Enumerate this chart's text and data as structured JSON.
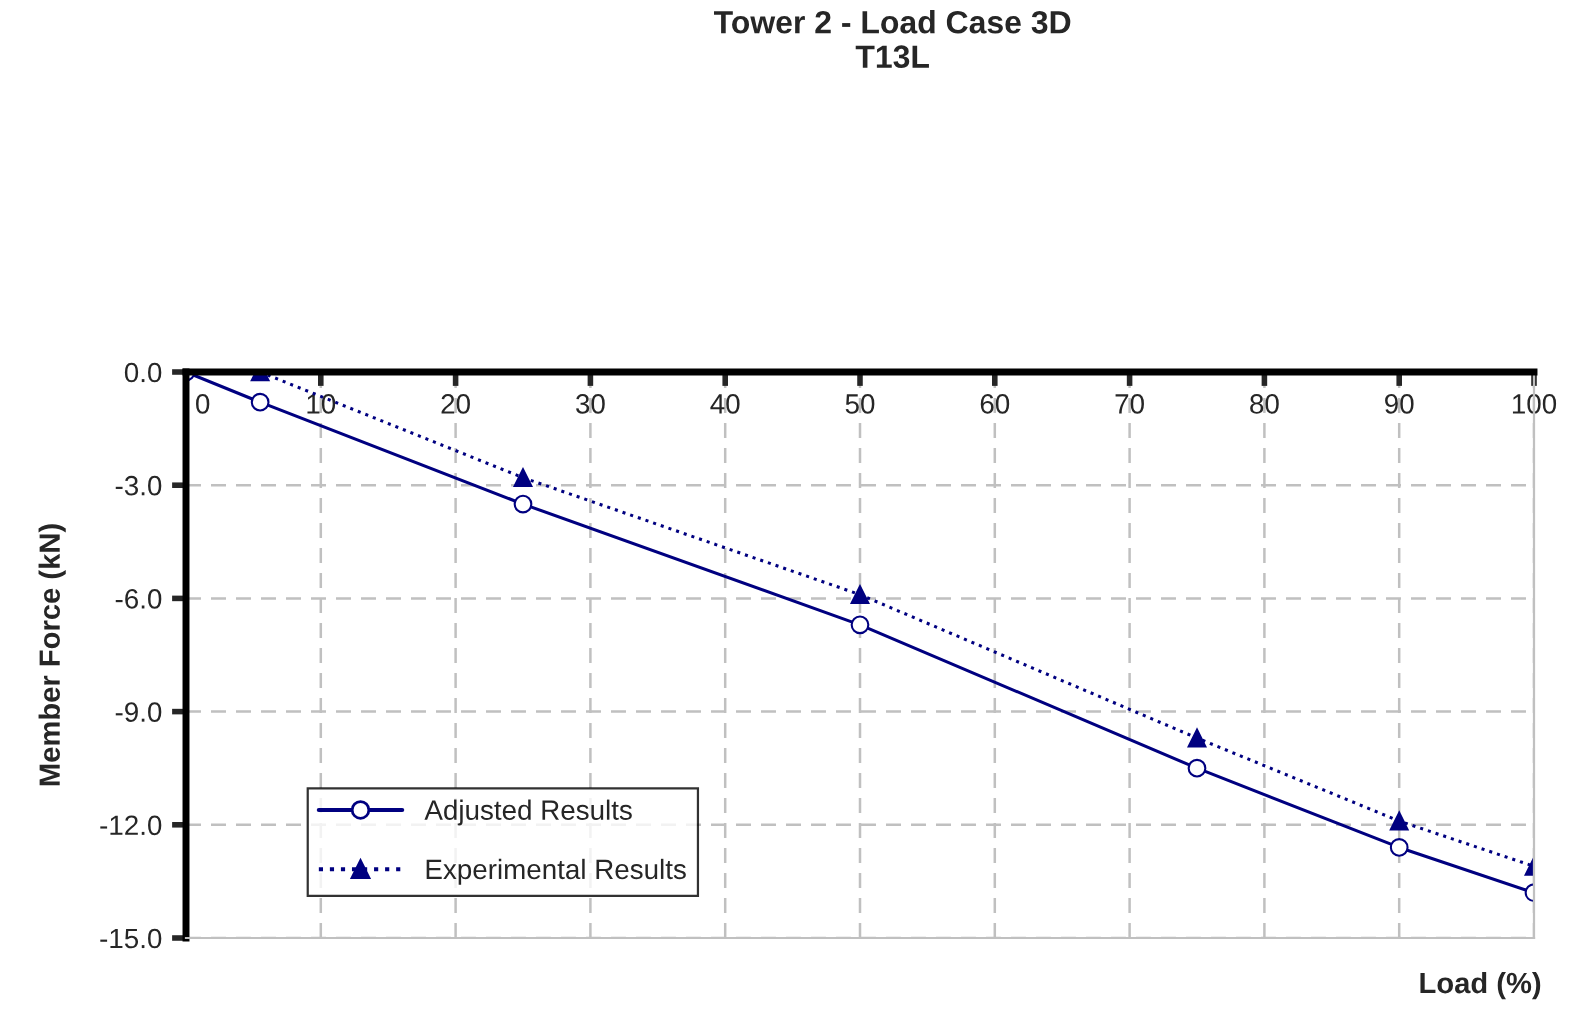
{
  "chart_data": {
    "type": "line",
    "title": "Tower 2 - Load Case 3D\nT13L",
    "xlabel": "Load (%)",
    "ylabel": "Member Force (kN)",
    "xlim": [
      0,
      100
    ],
    "xticks": [
      0,
      10,
      20,
      30,
      40,
      50,
      60,
      70,
      80,
      90,
      100
    ],
    "ylim": [
      -15,
      0
    ],
    "yticks": [
      {
        "value": -15,
        "label": "-15.0"
      },
      {
        "value": -12,
        "label": "-12.0"
      },
      {
        "value": -9,
        "label": "-9.0"
      },
      {
        "value": -6,
        "label": "-6.0"
      },
      {
        "value": -3,
        "label": "-3.0"
      },
      {
        "value": 0,
        "label": "0.0"
      }
    ],
    "grid": true,
    "legend": "bottom left",
    "series": [
      {
        "name": "Adjusted Results",
        "color": "#000080",
        "marker": "circle",
        "line_style": "solid",
        "x": [
          0,
          5.5,
          25,
          50,
          75,
          90,
          100
        ],
        "values": [
          0,
          -0.8,
          -3.5,
          -6.7,
          -10.5,
          -12.6,
          -13.8
        ]
      },
      {
        "name": "Experimental Results",
        "color": "#000080",
        "marker": "triangle",
        "line_style": "dotted",
        "x": [
          5.5,
          25,
          50,
          75,
          90,
          100
        ],
        "values": [
          0,
          -2.8,
          -5.9,
          -9.7,
          -11.9,
          -13.1
        ]
      }
    ]
  }
}
